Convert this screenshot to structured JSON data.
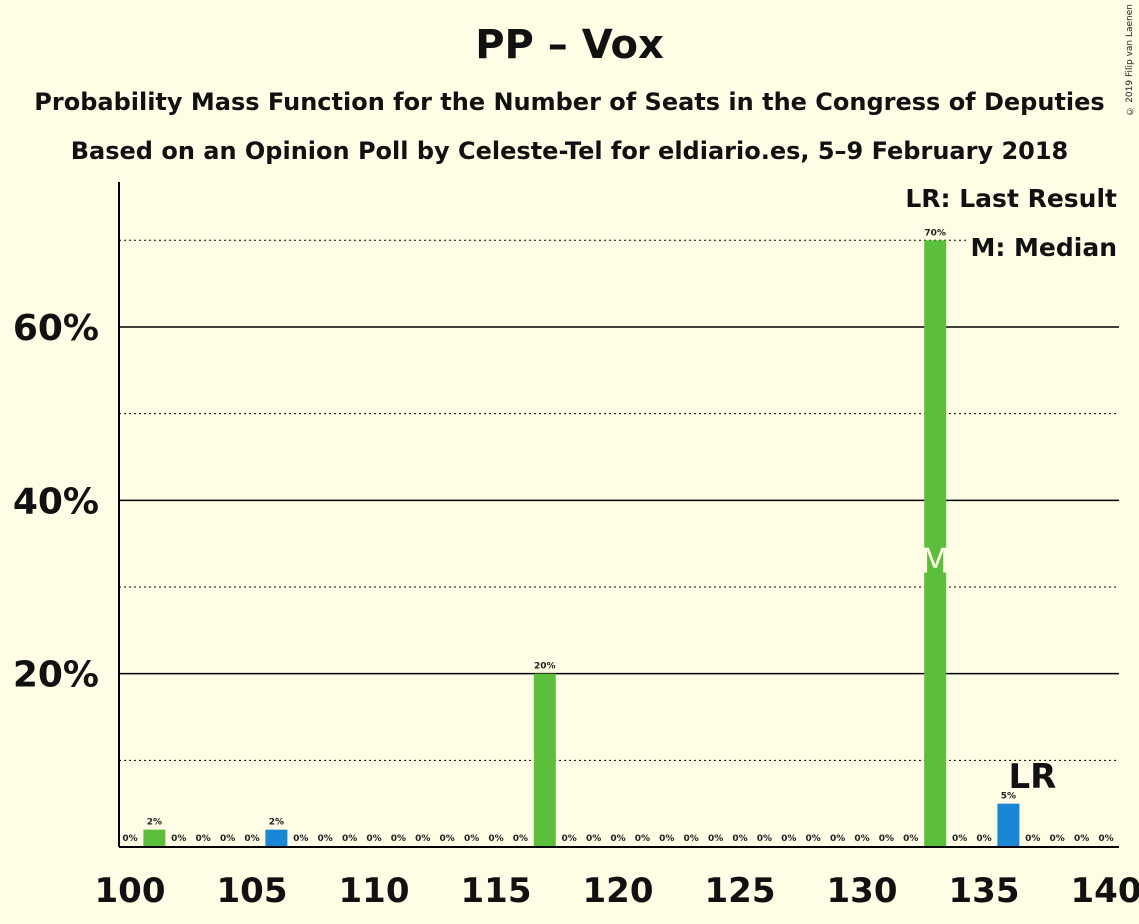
{
  "title": "PP – Vox",
  "subtitle1": "Probability Mass Function for the Number of Seats in the Congress of Deputies",
  "subtitle2": "Based on an Opinion Poll by Celeste-Tel for eldiario.es, 5–9 February 2018",
  "copyright": "© 2019 Filip van Laenen",
  "legend": {
    "lr": "LR: Last Result",
    "m": "M: Median"
  },
  "colors": {
    "bar": "#5bbf3b",
    "last_result": "#1a86d6",
    "background": "#fffde6"
  },
  "chart_data": {
    "type": "bar",
    "x": [
      100,
      101,
      102,
      103,
      104,
      105,
      106,
      107,
      108,
      109,
      110,
      111,
      112,
      113,
      114,
      115,
      116,
      117,
      118,
      119,
      120,
      121,
      122,
      123,
      124,
      125,
      126,
      127,
      128,
      129,
      130,
      131,
      132,
      133,
      134,
      135,
      136,
      137,
      138,
      139,
      140
    ],
    "values": [
      0,
      2,
      0,
      0,
      0,
      0,
      2,
      0,
      0,
      0,
      0,
      0,
      0,
      0,
      0,
      0,
      0,
      20,
      0,
      0,
      0,
      0,
      0,
      0,
      0,
      0,
      0,
      0,
      0,
      0,
      0,
      0,
      0,
      70,
      0,
      0,
      5,
      0,
      0,
      0,
      0
    ],
    "labels": [
      "0%",
      "2%",
      "0%",
      "0%",
      "0%",
      "0%",
      "2%",
      "0%",
      "0%",
      "0%",
      "0%",
      "0%",
      "0%",
      "0%",
      "0%",
      "0%",
      "0%",
      "20%",
      "0%",
      "0%",
      "0%",
      "0%",
      "0%",
      "0%",
      "0%",
      "0%",
      "0%",
      "0%",
      "0%",
      "0%",
      "0%",
      "0%",
      "0%",
      "70%",
      "0%",
      "0%",
      "5%",
      "0%",
      "0%",
      "0%",
      "0%"
    ],
    "highlight_x": [
      106,
      136
    ],
    "x_ticks": [
      "100",
      "105",
      "110",
      "115",
      "120",
      "125",
      "130",
      "135",
      "140"
    ],
    "y_ticks": [
      "20%",
      "40%",
      "60%"
    ],
    "ylim": [
      0,
      77
    ],
    "median_x": 133,
    "median_label": "M",
    "last_result_x": 136,
    "last_result_label": "LR",
    "grid": "major solid every 20%, minor dotted every 10%"
  }
}
